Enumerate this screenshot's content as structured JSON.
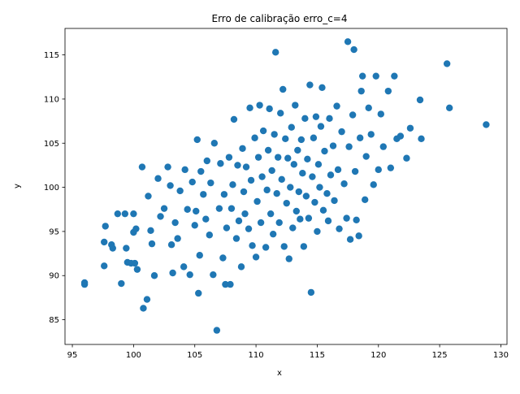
{
  "chart_data": {
    "type": "scatter",
    "title": "Erro de calibração erro_c=4",
    "xlabel": "x",
    "ylabel": "y",
    "xlim": [
      94.4,
      130.5
    ],
    "ylim": [
      82.2,
      118.0
    ],
    "xticks": [
      95,
      100,
      105,
      110,
      115,
      120,
      125,
      130
    ],
    "yticks": [
      85,
      90,
      95,
      100,
      105,
      110,
      115
    ],
    "xtick_labels": [
      "95",
      "100",
      "105",
      "110",
      "115",
      "120",
      "125",
      "130"
    ],
    "ytick_labels": [
      "85",
      "90",
      "95",
      "100",
      "105",
      "110",
      "115"
    ],
    "grid": false,
    "marker_color": "#1f77b4",
    "series": [
      {
        "points": [
          [
            96.0,
            89.0
          ],
          [
            96.0,
            89.2
          ],
          [
            97.6,
            91.1
          ],
          [
            97.6,
            93.8
          ],
          [
            97.7,
            95.6
          ],
          [
            98.2,
            93.5
          ],
          [
            98.3,
            93.1
          ],
          [
            98.7,
            97.0
          ],
          [
            99.0,
            89.1
          ],
          [
            99.3,
            97.0
          ],
          [
            99.4,
            93.1
          ],
          [
            99.5,
            91.5
          ],
          [
            99.8,
            91.4
          ],
          [
            100.0,
            97.0
          ],
          [
            100.0,
            94.9
          ],
          [
            100.1,
            91.4
          ],
          [
            100.2,
            95.3
          ],
          [
            100.3,
            90.7
          ],
          [
            100.7,
            102.3
          ],
          [
            100.8,
            86.3
          ],
          [
            101.1,
            87.3
          ],
          [
            101.2,
            99.0
          ],
          [
            101.4,
            95.1
          ],
          [
            101.5,
            93.6
          ],
          [
            101.7,
            90.0
          ],
          [
            102.0,
            101.0
          ],
          [
            102.2,
            96.7
          ],
          [
            102.5,
            97.6
          ],
          [
            102.8,
            102.3
          ],
          [
            103.0,
            100.2
          ],
          [
            103.1,
            93.5
          ],
          [
            103.2,
            90.3
          ],
          [
            103.4,
            96.0
          ],
          [
            103.6,
            94.2
          ],
          [
            103.8,
            99.6
          ],
          [
            104.1,
            91.0
          ],
          [
            104.2,
            102.0
          ],
          [
            104.4,
            97.5
          ],
          [
            104.6,
            90.1
          ],
          [
            104.8,
            100.6
          ],
          [
            105.0,
            95.7
          ],
          [
            105.1,
            97.3
          ],
          [
            105.2,
            105.4
          ],
          [
            105.3,
            88.0
          ],
          [
            105.4,
            92.3
          ],
          [
            105.5,
            101.8
          ],
          [
            105.7,
            99.2
          ],
          [
            105.9,
            96.4
          ],
          [
            106.0,
            103.0
          ],
          [
            106.2,
            94.6
          ],
          [
            106.3,
            100.5
          ],
          [
            106.5,
            90.1
          ],
          [
            106.6,
            105.0
          ],
          [
            106.8,
            83.8
          ],
          [
            107.0,
            97.6
          ],
          [
            107.1,
            102.7
          ],
          [
            107.3,
            92.0
          ],
          [
            107.4,
            99.2
          ],
          [
            107.5,
            89.0
          ],
          [
            107.6,
            95.4
          ],
          [
            107.8,
            103.4
          ],
          [
            107.9,
            89.0
          ],
          [
            108.0,
            97.6
          ],
          [
            108.1,
            100.3
          ],
          [
            108.2,
            107.7
          ],
          [
            108.4,
            94.2
          ],
          [
            108.5,
            102.5
          ],
          [
            108.6,
            96.2
          ],
          [
            108.8,
            91.0
          ],
          [
            108.9,
            104.4
          ],
          [
            109.0,
            99.5
          ],
          [
            109.1,
            97.0
          ],
          [
            109.2,
            102.3
          ],
          [
            109.4,
            95.3
          ],
          [
            109.5,
            109.0
          ],
          [
            109.6,
            100.8
          ],
          [
            109.7,
            93.4
          ],
          [
            109.9,
            105.6
          ],
          [
            110.0,
            92.1
          ],
          [
            110.1,
            98.4
          ],
          [
            110.2,
            103.4
          ],
          [
            110.3,
            109.3
          ],
          [
            110.4,
            96.0
          ],
          [
            110.5,
            101.2
          ],
          [
            110.6,
            106.4
          ],
          [
            110.8,
            93.2
          ],
          [
            110.9,
            99.7
          ],
          [
            111.0,
            104.2
          ],
          [
            111.1,
            108.9
          ],
          [
            111.2,
            97.0
          ],
          [
            111.3,
            101.9
          ],
          [
            111.4,
            94.7
          ],
          [
            111.5,
            106.0
          ],
          [
            111.6,
            115.3
          ],
          [
            111.7,
            99.3
          ],
          [
            111.8,
            103.4
          ],
          [
            111.9,
            96.0
          ],
          [
            112.0,
            108.4
          ],
          [
            112.1,
            100.9
          ],
          [
            112.2,
            111.1
          ],
          [
            112.3,
            93.3
          ],
          [
            112.4,
            105.5
          ],
          [
            112.5,
            98.2
          ],
          [
            112.6,
            103.3
          ],
          [
            112.7,
            91.9
          ],
          [
            112.8,
            100.0
          ],
          [
            112.9,
            106.8
          ],
          [
            113.0,
            95.4
          ],
          [
            113.1,
            102.6
          ],
          [
            113.2,
            109.3
          ],
          [
            113.3,
            97.3
          ],
          [
            113.4,
            104.2
          ],
          [
            113.5,
            99.5
          ],
          [
            113.6,
            96.4
          ],
          [
            113.7,
            105.4
          ],
          [
            113.8,
            101.6
          ],
          [
            113.9,
            93.3
          ],
          [
            114.0,
            107.8
          ],
          [
            114.1,
            99.0
          ],
          [
            114.2,
            103.2
          ],
          [
            114.3,
            96.5
          ],
          [
            114.4,
            111.6
          ],
          [
            114.5,
            88.1
          ],
          [
            114.6,
            101.2
          ],
          [
            114.7,
            105.6
          ],
          [
            114.8,
            98.3
          ],
          [
            114.9,
            108.0
          ],
          [
            115.0,
            95.0
          ],
          [
            115.1,
            102.6
          ],
          [
            115.2,
            100.0
          ],
          [
            115.3,
            106.9
          ],
          [
            115.4,
            111.3
          ],
          [
            115.5,
            97.4
          ],
          [
            115.6,
            104.1
          ],
          [
            115.8,
            99.3
          ],
          [
            115.9,
            96.2
          ],
          [
            116.0,
            107.8
          ],
          [
            116.1,
            101.4
          ],
          [
            116.3,
            104.7
          ],
          [
            116.4,
            98.5
          ],
          [
            116.6,
            109.2
          ],
          [
            116.7,
            102.0
          ],
          [
            116.8,
            95.3
          ],
          [
            117.0,
            106.3
          ],
          [
            117.2,
            100.4
          ],
          [
            117.4,
            96.5
          ],
          [
            117.5,
            116.5
          ],
          [
            117.6,
            104.6
          ],
          [
            117.7,
            94.1
          ],
          [
            117.9,
            108.2
          ],
          [
            118.0,
            115.6
          ],
          [
            118.1,
            101.8
          ],
          [
            118.2,
            96.3
          ],
          [
            118.4,
            94.5
          ],
          [
            118.5,
            105.6
          ],
          [
            118.6,
            110.9
          ],
          [
            118.7,
            112.6
          ],
          [
            118.9,
            98.6
          ],
          [
            119.0,
            103.5
          ],
          [
            119.2,
            109.0
          ],
          [
            119.4,
            106.0
          ],
          [
            119.6,
            100.3
          ],
          [
            119.8,
            112.6
          ],
          [
            120.0,
            102.0
          ],
          [
            120.2,
            108.3
          ],
          [
            120.4,
            104.6
          ],
          [
            120.8,
            110.9
          ],
          [
            121.0,
            102.2
          ],
          [
            121.3,
            112.6
          ],
          [
            121.5,
            105.5
          ],
          [
            121.8,
            105.8
          ],
          [
            122.3,
            103.3
          ],
          [
            122.6,
            106.7
          ],
          [
            123.4,
            109.9
          ],
          [
            123.5,
            105.5
          ],
          [
            125.6,
            114.0
          ],
          [
            125.8,
            109.0
          ],
          [
            128.8,
            107.1
          ]
        ]
      }
    ]
  }
}
